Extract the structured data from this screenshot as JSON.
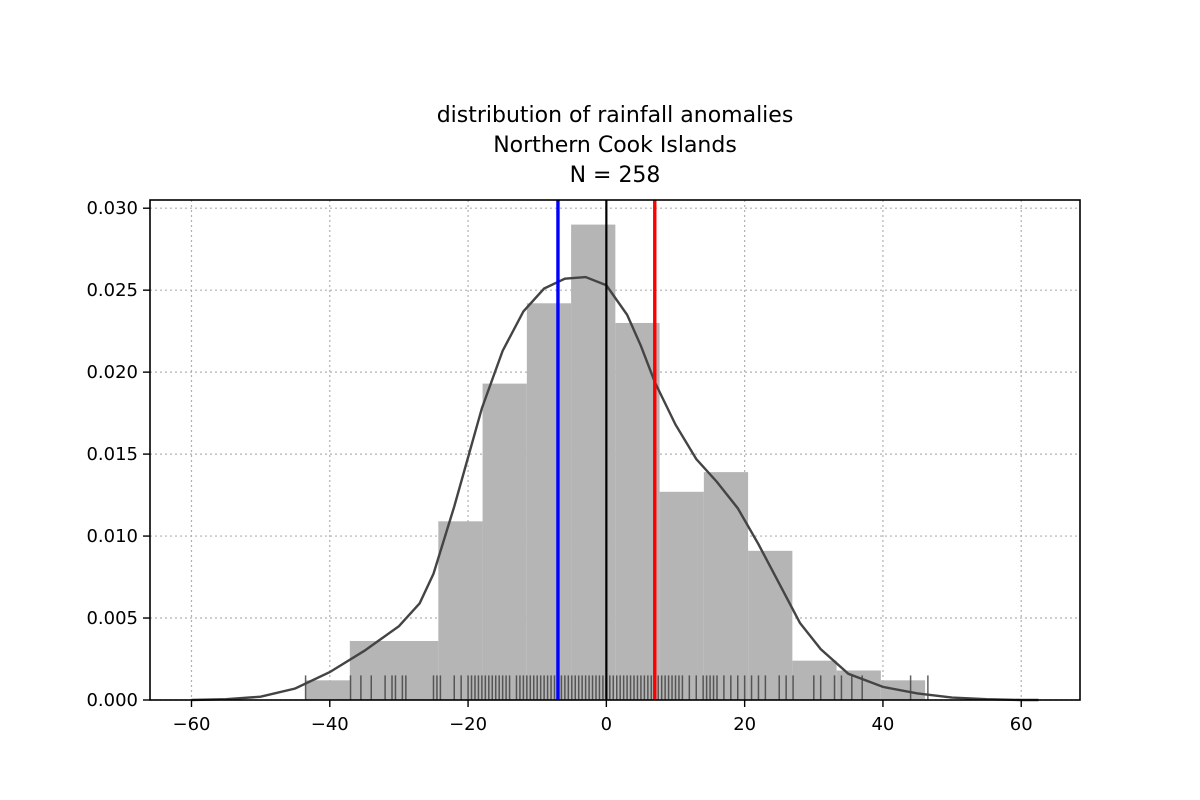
{
  "chart_data": {
    "type": "bar",
    "title_lines": [
      "distribution of rainfall anomalies",
      "Northern Cook Islands",
      "N = 258"
    ],
    "xlabel": "",
    "ylabel": "",
    "xlim": [
      -66,
      68.5
    ],
    "ylim": [
      0,
      0.0305
    ],
    "xticks": [
      -60,
      -40,
      -20,
      0,
      20,
      40,
      60
    ],
    "yticks": [
      0.0,
      0.005,
      0.01,
      0.015,
      0.02,
      0.025,
      0.03
    ],
    "xtick_labels": [
      "−60",
      "−40",
      "−20",
      "0",
      "20",
      "40",
      "60"
    ],
    "ytick_labels": [
      "0.000",
      "0.005",
      "0.010",
      "0.015",
      "0.020",
      "0.025",
      "0.030"
    ],
    "grid": true,
    "histogram": {
      "bin_edges": [
        -43.5,
        -37.1,
        -24.3,
        -17.9,
        -11.5,
        -5.1,
        1.3,
        7.7,
        14.1,
        20.5,
        26.9,
        33.3,
        39.7,
        46.1
      ],
      "density": [
        0.0012,
        0.0036,
        0.0109,
        0.0193,
        0.0242,
        0.029,
        0.023,
        0.0127,
        0.0139,
        0.0091,
        0.0024,
        0.0018,
        0.0012
      ]
    },
    "kde": {
      "x": [
        -60,
        -55,
        -50,
        -45,
        -40,
        -35,
        -30,
        -27,
        -25,
        -22,
        -20,
        -18,
        -15,
        -12,
        -9,
        -6,
        -3,
        0,
        3,
        5,
        7,
        10,
        13,
        16,
        19,
        22,
        25,
        28,
        31,
        35,
        40,
        45,
        50,
        55,
        60,
        62.5
      ],
      "y": [
        0.0,
        5e-05,
        0.0002,
        0.0007,
        0.0017,
        0.003,
        0.0045,
        0.0059,
        0.0077,
        0.0118,
        0.0148,
        0.0178,
        0.0213,
        0.0237,
        0.0251,
        0.0257,
        0.0258,
        0.0253,
        0.0235,
        0.0216,
        0.0194,
        0.0168,
        0.0147,
        0.0133,
        0.0117,
        0.0095,
        0.0071,
        0.0047,
        0.0031,
        0.0016,
        0.0008,
        0.0004,
        0.00015,
        5e-05,
        0.0,
        0.0
      ]
    },
    "vertical_lines": [
      {
        "x": -7,
        "color": "#0000ff"
      },
      {
        "x": 0,
        "color": "#000000"
      },
      {
        "x": 7,
        "color": "#ff0000"
      }
    ],
    "rug_x": [
      -43.5,
      -37,
      -35.5,
      -34,
      -32,
      -31,
      -30.5,
      -29.5,
      -29,
      -25,
      -24.5,
      -24,
      -22,
      -21,
      -20,
      -19.5,
      -19,
      -18.5,
      -18,
      -17.5,
      -17,
      -16.5,
      -16,
      -15.5,
      -15,
      -14.5,
      -14,
      -13,
      -12.5,
      -12,
      -11.5,
      -11,
      -10.5,
      -10,
      -9.5,
      -9,
      -8.5,
      -8,
      -7.5,
      -7,
      -6.5,
      -6,
      -5.5,
      -5,
      -4.5,
      -4,
      -3.5,
      -3,
      -2.5,
      -2,
      -1.5,
      -1,
      -0.5,
      0,
      0.5,
      1,
      1.5,
      2,
      2.5,
      3,
      3.5,
      4,
      4.5,
      5,
      5.5,
      6,
      6.5,
      7,
      7.5,
      8,
      8.5,
      9,
      9.5,
      10,
      10.5,
      11,
      12,
      13,
      14,
      14.5,
      15,
      15.5,
      16,
      17,
      18,
      19,
      20,
      21,
      22,
      23,
      25,
      26,
      27,
      30,
      31,
      33,
      34,
      35.5,
      37,
      44,
      46.5
    ],
    "rug_height": 0.0015
  }
}
